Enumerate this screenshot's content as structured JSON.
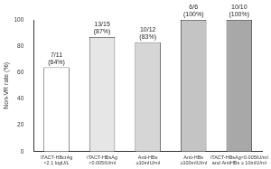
{
  "chart_data": {
    "type": "bar",
    "y_label": "Non-VR rate (%)",
    "categories": [
      "iTACT-HBcrAg\n<2.1 logU/L",
      "iTACT-HBsAg\n<0.005IU/ml",
      "Anti-HBs\n≥10mIU/ml",
      "Anti-HBs\n≥100mIU/ml",
      "iTACT-HBsAg<0.005IU/ml\nand AntiHBs ≥ 10mIU/ml"
    ],
    "values": [
      64,
      87,
      83,
      100,
      100
    ],
    "value_labels": [
      "7/11\n(64%)",
      "13/15\n(87%)",
      "10/12\n(83%)",
      "6/6\n(100%)",
      "10/10\n(100%)"
    ],
    "colors": [
      "#ffffff",
      "#e6e6e6",
      "#d6d6d6",
      "#c4c4c4",
      "#a8a8a8"
    ],
    "ylim": [
      0,
      100
    ],
    "yticks": [
      0,
      20,
      40,
      60,
      80,
      100
    ],
    "grid": false,
    "data_labels": true
  }
}
